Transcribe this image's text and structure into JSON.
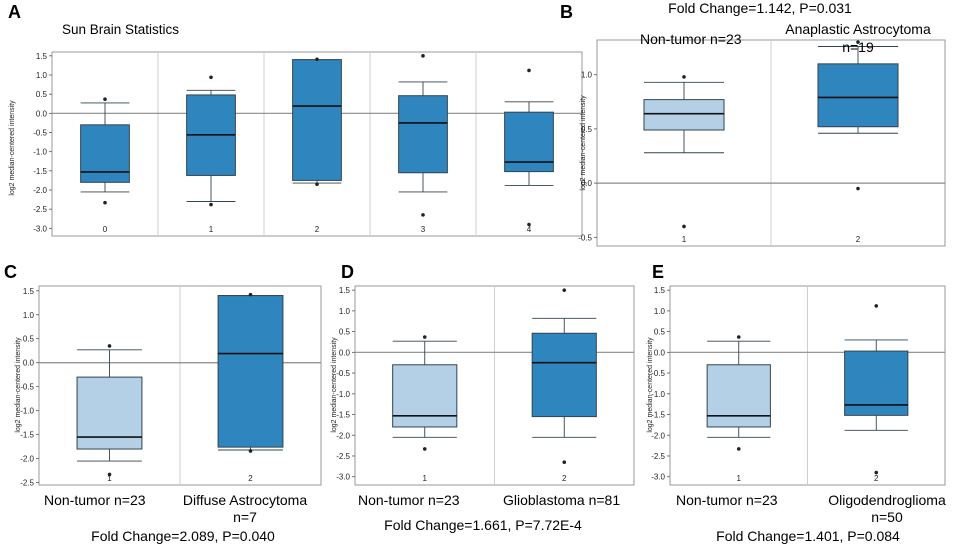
{
  "colors": {
    "light_box": "#b4d0e6",
    "dark_box": "#2f86bf",
    "box_stroke": "#33444f",
    "grid": "#cfcfcf",
    "zero_line": "#8a8a8a"
  },
  "chart_data": [
    {
      "panel": "A",
      "type": "box",
      "title": "Sun Brain Statistics",
      "ylabel": "log2 median-centered intensity",
      "ylim": [
        -3.2,
        1.6
      ],
      "yticks": [
        "1.5",
        "1.0",
        "0.5",
        "0.0",
        "-0.5",
        "-1.0",
        "-1.5",
        "-2.0",
        "-2.5",
        "-3.0"
      ],
      "categories": [
        "0",
        "1",
        "2",
        "3",
        "4"
      ],
      "boxes": [
        {
          "q1": -1.8,
          "median": -1.53,
          "q3": -0.3,
          "whisker_low": -2.05,
          "whisker_high": 0.27,
          "outliers": [
            0.37,
            -2.33
          ],
          "color": "dark"
        },
        {
          "q1": -1.62,
          "median": -0.56,
          "q3": 0.48,
          "whisker_low": -2.3,
          "whisker_high": 0.6,
          "outliers": [
            0.94,
            -2.38
          ],
          "color": "dark"
        },
        {
          "q1": -1.75,
          "median": 0.19,
          "q3": 1.4,
          "whisker_low": -1.82,
          "whisker_high": 1.4,
          "outliers": [
            1.41,
            -1.85
          ],
          "color": "dark"
        },
        {
          "q1": -1.55,
          "median": -0.25,
          "q3": 0.46,
          "whisker_low": -2.05,
          "whisker_high": 0.82,
          "outliers": [
            1.5,
            -2.65
          ],
          "color": "dark"
        },
        {
          "q1": -1.52,
          "median": -1.27,
          "q3": 0.03,
          "whisker_low": -1.88,
          "whisker_high": 0.3,
          "outliers": [
            1.12,
            -2.9
          ],
          "color": "dark"
        }
      ],
      "headers": [],
      "caption": []
    },
    {
      "panel": "B",
      "type": "box",
      "title": "Fold Change=1.142,  P=0.031",
      "ylabel": "log2 median-centered intensity",
      "ylim": [
        -0.58,
        1.32
      ],
      "yticks": [
        "1.0",
        "0.5",
        "0.0",
        "-0.5"
      ],
      "categories": [
        "1",
        "2"
      ],
      "boxes": [
        {
          "q1": 0.49,
          "median": 0.64,
          "q3": 0.77,
          "whisker_low": 0.28,
          "whisker_high": 0.93,
          "outliers": [
            0.98,
            -0.4
          ],
          "color": "light"
        },
        {
          "q1": 0.52,
          "median": 0.79,
          "q3": 1.1,
          "whisker_low": 0.46,
          "whisker_high": 1.26,
          "outliers": [
            1.3,
            -0.05
          ],
          "color": "dark"
        }
      ],
      "headers": [
        "Non-tumor  n=23",
        "Anaplastic Astrocytoma",
        "n=19"
      ],
      "caption": []
    },
    {
      "panel": "C",
      "type": "box",
      "title": "",
      "ylabel": "log2 median-centered intensity",
      "ylim": [
        -2.55,
        1.6
      ],
      "yticks": [
        "1.5",
        "1.0",
        "0.5",
        "0.0",
        "-0.5",
        "-1.0",
        "-1.5",
        "-2.0",
        "-2.5"
      ],
      "categories": [
        "1",
        "2"
      ],
      "boxes": [
        {
          "q1": -1.8,
          "median": -1.55,
          "q3": -0.3,
          "whisker_low": -2.05,
          "whisker_high": 0.27,
          "outliers": [
            0.35,
            -2.33
          ],
          "color": "light"
        },
        {
          "q1": -1.76,
          "median": 0.19,
          "q3": 1.4,
          "whisker_low": -1.82,
          "whisker_high": 1.4,
          "outliers": [
            1.42,
            -1.84
          ],
          "color": "dark"
        }
      ],
      "headers": [],
      "caption": [
        "Non-tumor  n=23",
        "Diffuse  Astrocytoma",
        "n=7",
        "Fold Change=2.089,  P=0.040"
      ]
    },
    {
      "panel": "D",
      "type": "box",
      "title": "",
      "ylabel": "log2 median-centered intensity",
      "ylim": [
        -3.2,
        1.6
      ],
      "yticks": [
        "1.5",
        "1.0",
        "0.5",
        "0.0",
        "-0.5",
        "-1.0",
        "-1.5",
        "-2.0",
        "-2.5",
        "-3.0"
      ],
      "categories": [
        "1",
        "2"
      ],
      "boxes": [
        {
          "q1": -1.8,
          "median": -1.53,
          "q3": -0.3,
          "whisker_low": -2.05,
          "whisker_high": 0.27,
          "outliers": [
            0.37,
            -2.33
          ],
          "color": "light"
        },
        {
          "q1": -1.55,
          "median": -0.25,
          "q3": 0.46,
          "whisker_low": -2.05,
          "whisker_high": 0.82,
          "outliers": [
            1.5,
            -2.65
          ],
          "color": "dark"
        }
      ],
      "headers": [],
      "caption": [
        "Non-tumor  n=23",
        "Glioblastoma  n=81",
        "Fold Change=1.661,  P=7.72E-4"
      ]
    },
    {
      "panel": "E",
      "type": "box",
      "title": "",
      "ylabel": "log2 median-centered intensity",
      "ylim": [
        -3.2,
        1.6
      ],
      "yticks": [
        "1.5",
        "1.0",
        "0.5",
        "0.0",
        "-0.5",
        "-1.0",
        "-1.5",
        "-2.0",
        "-2.5",
        "-3.0"
      ],
      "categories": [
        "1",
        "2"
      ],
      "boxes": [
        {
          "q1": -1.8,
          "median": -1.53,
          "q3": -0.3,
          "whisker_low": -2.05,
          "whisker_high": 0.27,
          "outliers": [
            0.37,
            -2.33
          ],
          "color": "light"
        },
        {
          "q1": -1.52,
          "median": -1.27,
          "q3": 0.03,
          "whisker_low": -1.88,
          "whisker_high": 0.3,
          "outliers": [
            1.12,
            -2.9
          ],
          "color": "dark"
        }
      ],
      "headers": [],
      "caption": [
        "Non-tumor  n=23",
        "Oligodendroglioma",
        "n=50",
        "Fold Change=1.401,  P=0.084"
      ]
    }
  ]
}
